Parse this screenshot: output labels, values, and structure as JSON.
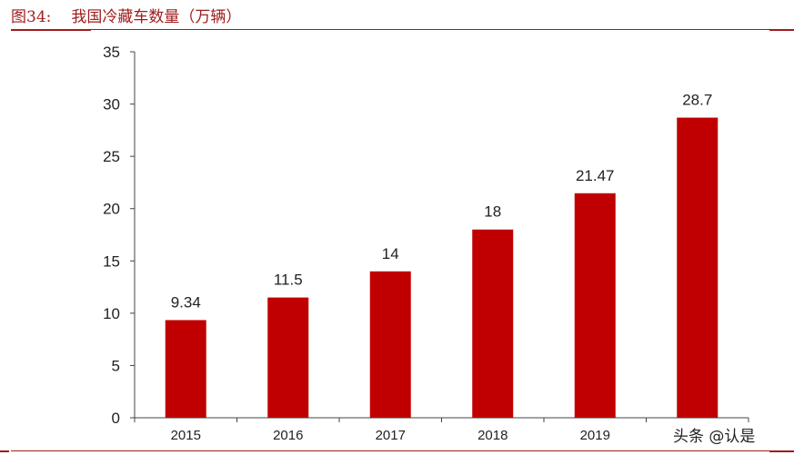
{
  "figure": {
    "number": "图34:",
    "title": "我国冷藏车数量（万辆）"
  },
  "watermark": "头条 @认是",
  "colors": {
    "bar": "#c00000",
    "title": "#a01c1c",
    "rule": "#a01c1c",
    "axis": "#444444"
  },
  "chart_data": {
    "type": "bar",
    "title": "我国冷藏车数量（万辆）",
    "xlabel": "",
    "ylabel": "",
    "categories": [
      "2015",
      "2016",
      "2017",
      "2018",
      "2019",
      ""
    ],
    "values": [
      9.34,
      11.5,
      14,
      18,
      21.47,
      28.7
    ],
    "data_labels": [
      "9.34",
      "11.5",
      "14",
      "18",
      "21.47",
      "28.7"
    ],
    "ylim": [
      0,
      35
    ],
    "yticks": [
      0,
      5,
      10,
      15,
      20,
      25,
      30,
      35
    ],
    "grid": false,
    "legend": null
  }
}
